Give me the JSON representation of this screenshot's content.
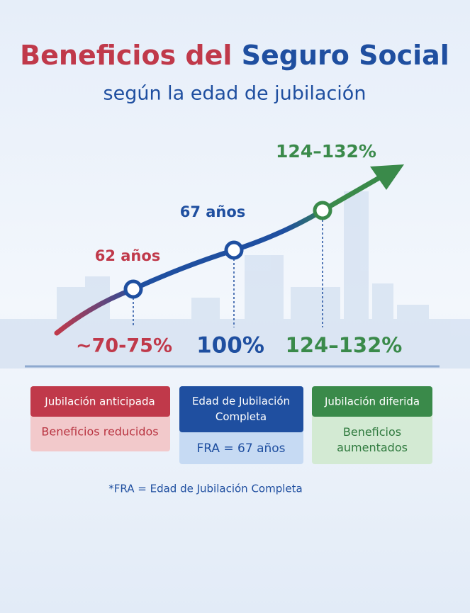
{
  "header": {
    "title_part1": "Beneficios del",
    "title_part2": "Seguro Social",
    "subtitle": "según la edad de jubilación"
  },
  "points": [
    {
      "label": "62 años",
      "benefit": "~70-75%"
    },
    {
      "label": "67 años",
      "benefit": "100%"
    },
    {
      "label": "124–132%",
      "benefit": "124–132%"
    }
  ],
  "cards": [
    {
      "title": "Jubilación anticipada",
      "body": "Beneficios reducidos"
    },
    {
      "title": "Edad de Jubilación Completa",
      "body": "FRA = 67 años"
    },
    {
      "title": "Jubilación diferida",
      "body": "Beneficios aumentados"
    }
  ],
  "footnote": "*FRA = Edad de Jubilación Completa"
}
